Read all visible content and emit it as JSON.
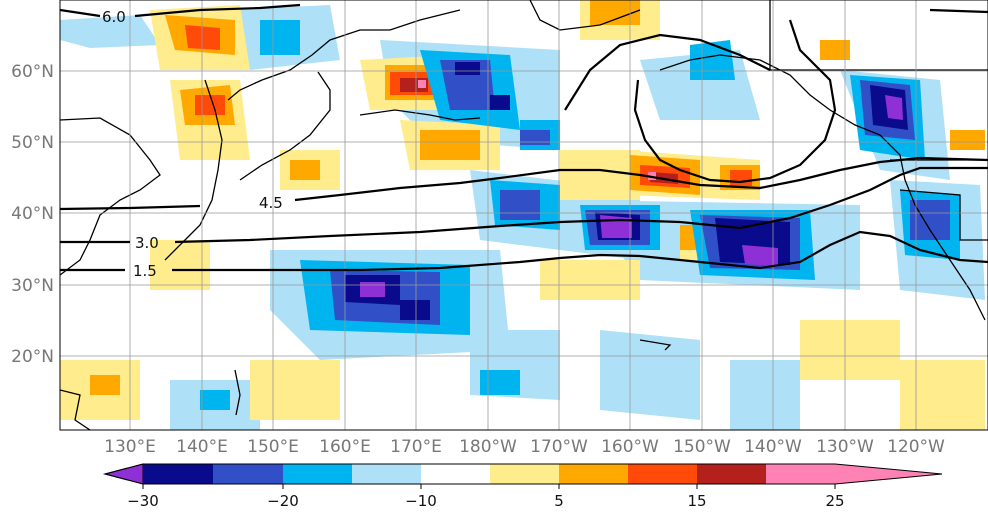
{
  "map": {
    "lat_labels": [
      "60°N",
      "50°N",
      "40°N",
      "30°N",
      "20°N"
    ],
    "lon_labels": [
      "130°E",
      "140°E",
      "150°E",
      "160°E",
      "170°E",
      "180°W",
      "170°W",
      "160°W",
      "150°W",
      "140°W",
      "130°W",
      "120°W"
    ],
    "contours": [
      {
        "label": "6.0",
        "value": 6.0
      },
      {
        "label": "4.5",
        "value": 4.5
      },
      {
        "label": "3.0",
        "value": 3.0
      },
      {
        "label": "1.5",
        "value": 1.5
      }
    ]
  },
  "colorbar": {
    "tick_labels": [
      "−30",
      "−20",
      "−10",
      "5",
      "15",
      "25"
    ],
    "colors": [
      "#8f2fd6",
      "#0a0a8c",
      "#3150c8",
      "#00b4f0",
      "#aee0f8",
      "#ffffff",
      "#ffec8c",
      "#ffa800",
      "#ff4a0a",
      "#b4201c",
      "#ff82b4"
    ]
  }
}
